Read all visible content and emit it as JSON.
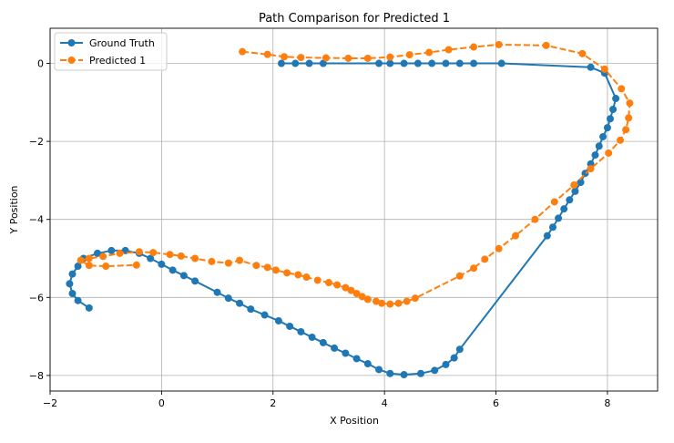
{
  "chart_data": {
    "type": "line",
    "title": "Path Comparison for Predicted 1",
    "xlabel": "X Position",
    "ylabel": "Y Position",
    "xlim": [
      -2.0,
      8.9
    ],
    "ylim": [
      -8.4,
      0.9
    ],
    "xticks": [
      -2,
      0,
      2,
      4,
      6,
      8
    ],
    "yticks": [
      0,
      -2,
      -4,
      -6,
      -8
    ],
    "xtick_labels": [
      "−2",
      "0",
      "2",
      "4",
      "6",
      "8"
    ],
    "ytick_labels": [
      "0",
      "−2",
      "−4",
      "−6",
      "−8"
    ],
    "grid": true,
    "legend_position": "top-left",
    "series": [
      {
        "name": "Ground Truth",
        "color": "#1f77b4",
        "linestyle": "solid",
        "points": [
          [
            2.15,
            0.0
          ],
          [
            2.4,
            0.0
          ],
          [
            2.65,
            0.0
          ],
          [
            2.9,
            0.0
          ],
          [
            3.9,
            0.0
          ],
          [
            4.1,
            0.0
          ],
          [
            4.35,
            0.0
          ],
          [
            4.6,
            0.0
          ],
          [
            4.85,
            0.0
          ],
          [
            5.1,
            0.0
          ],
          [
            5.35,
            0.0
          ],
          [
            5.6,
            0.0
          ],
          [
            6.1,
            0.0
          ],
          [
            7.7,
            -0.1
          ],
          [
            7.95,
            -0.25
          ],
          [
            8.15,
            -0.9
          ],
          [
            8.1,
            -1.18
          ],
          [
            8.05,
            -1.42
          ],
          [
            8.0,
            -1.65
          ],
          [
            7.92,
            -1.88
          ],
          [
            7.85,
            -2.12
          ],
          [
            7.78,
            -2.35
          ],
          [
            7.7,
            -2.58
          ],
          [
            7.6,
            -2.82
          ],
          [
            7.52,
            -3.05
          ],
          [
            7.42,
            -3.28
          ],
          [
            7.32,
            -3.5
          ],
          [
            7.22,
            -3.73
          ],
          [
            7.12,
            -3.97
          ],
          [
            7.02,
            -4.2
          ],
          [
            6.92,
            -4.42
          ],
          [
            5.35,
            -7.33
          ],
          [
            5.25,
            -7.55
          ],
          [
            5.1,
            -7.72
          ],
          [
            4.9,
            -7.87
          ],
          [
            4.65,
            -7.95
          ],
          [
            4.35,
            -7.98
          ],
          [
            4.1,
            -7.95
          ],
          [
            3.9,
            -7.85
          ],
          [
            3.7,
            -7.7
          ],
          [
            3.5,
            -7.57
          ],
          [
            3.3,
            -7.43
          ],
          [
            3.1,
            -7.3
          ],
          [
            2.9,
            -7.16
          ],
          [
            2.7,
            -7.02
          ],
          [
            2.5,
            -6.88
          ],
          [
            2.3,
            -6.74
          ],
          [
            2.1,
            -6.6
          ],
          [
            1.85,
            -6.45
          ],
          [
            1.6,
            -6.3
          ],
          [
            1.4,
            -6.15
          ],
          [
            1.2,
            -6.02
          ],
          [
            1.0,
            -5.87
          ],
          [
            0.6,
            -5.58
          ],
          [
            0.4,
            -5.44
          ],
          [
            0.2,
            -5.3
          ],
          [
            0.0,
            -5.15
          ],
          [
            -0.2,
            -5.0
          ],
          [
            -0.4,
            -4.87
          ],
          [
            -0.65,
            -4.8
          ],
          [
            -0.9,
            -4.8
          ],
          [
            -1.15,
            -4.87
          ],
          [
            -1.4,
            -5.0
          ],
          [
            -1.5,
            -5.2
          ],
          [
            -1.6,
            -5.4
          ],
          [
            -1.65,
            -5.65
          ],
          [
            -1.6,
            -5.9
          ],
          [
            -1.5,
            -6.08
          ],
          [
            -1.3,
            -6.27
          ]
        ]
      },
      {
        "name": "Predicted 1",
        "color": "#ff7f0e",
        "linestyle": "dashed",
        "points": [
          [
            1.45,
            0.3
          ],
          [
            1.9,
            0.23
          ],
          [
            2.2,
            0.17
          ],
          [
            2.5,
            0.15
          ],
          [
            2.95,
            0.14
          ],
          [
            3.35,
            0.13
          ],
          [
            3.7,
            0.13
          ],
          [
            4.1,
            0.16
          ],
          [
            4.45,
            0.22
          ],
          [
            4.8,
            0.28
          ],
          [
            5.15,
            0.35
          ],
          [
            5.6,
            0.42
          ],
          [
            6.05,
            0.48
          ],
          [
            6.9,
            0.46
          ],
          [
            7.55,
            0.25
          ],
          [
            7.95,
            -0.15
          ],
          [
            8.25,
            -0.65
          ],
          [
            8.4,
            -1.02
          ],
          [
            8.38,
            -1.4
          ],
          [
            8.33,
            -1.7
          ],
          [
            8.23,
            -1.97
          ],
          [
            8.02,
            -2.3
          ],
          [
            7.7,
            -2.7
          ],
          [
            7.4,
            -3.12
          ],
          [
            7.05,
            -3.55
          ],
          [
            6.7,
            -4.0
          ],
          [
            6.35,
            -4.42
          ],
          [
            6.05,
            -4.75
          ],
          [
            5.8,
            -5.02
          ],
          [
            5.6,
            -5.25
          ],
          [
            5.35,
            -5.45
          ],
          [
            4.55,
            -6.02
          ],
          [
            4.4,
            -6.1
          ],
          [
            4.25,
            -6.15
          ],
          [
            4.1,
            -6.17
          ],
          [
            3.95,
            -6.15
          ],
          [
            3.85,
            -6.1
          ],
          [
            3.7,
            -6.05
          ],
          [
            3.6,
            -5.98
          ],
          [
            3.5,
            -5.9
          ],
          [
            3.4,
            -5.82
          ],
          [
            3.3,
            -5.75
          ],
          [
            3.15,
            -5.68
          ],
          [
            3.0,
            -5.62
          ],
          [
            2.8,
            -5.56
          ],
          [
            2.6,
            -5.48
          ],
          [
            2.45,
            -5.42
          ],
          [
            2.25,
            -5.37
          ],
          [
            2.05,
            -5.3
          ],
          [
            1.9,
            -5.23
          ],
          [
            1.7,
            -5.18
          ],
          [
            1.4,
            -5.05
          ],
          [
            1.2,
            -5.12
          ],
          [
            0.9,
            -5.08
          ],
          [
            0.6,
            -5.0
          ],
          [
            0.35,
            -4.94
          ],
          [
            0.15,
            -4.9
          ],
          [
            -0.15,
            -4.85
          ],
          [
            -0.4,
            -4.83
          ],
          [
            -0.75,
            -4.87
          ],
          [
            -1.05,
            -4.95
          ],
          [
            -1.3,
            -5.0
          ],
          [
            -1.45,
            -5.05
          ],
          [
            -1.3,
            -5.18
          ],
          [
            -1.0,
            -5.2
          ],
          [
            -0.45,
            -5.17
          ]
        ]
      }
    ]
  }
}
